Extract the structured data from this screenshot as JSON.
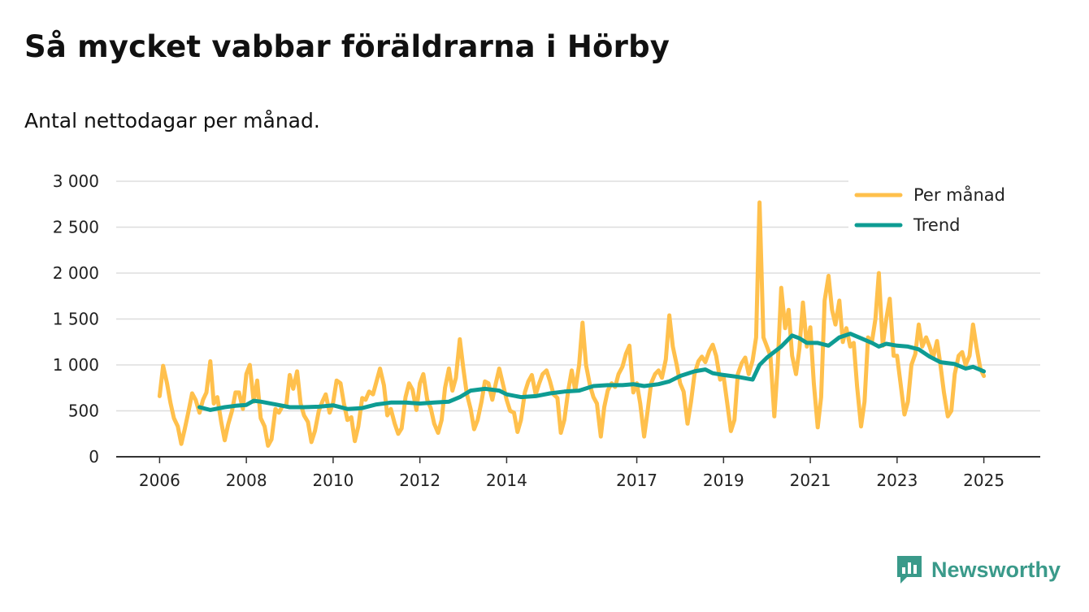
{
  "title": "Så mycket vabbar föräldrarna i Hörby",
  "subtitle": "Antal nettodagar per månad.",
  "brand": {
    "name": "Newsworthy",
    "icon": "newsworthy-logo-icon",
    "color": "#3a9a8a"
  },
  "colors": {
    "monthly": "#ffc04c",
    "trend": "#0e9c93",
    "grid": "#dddddd",
    "axis": "#333333"
  },
  "chart_data": {
    "type": "line",
    "title": "Så mycket vabbar föräldrarna i Hörby",
    "subtitle": "Antal nettodagar per månad.",
    "xlabel": "",
    "ylabel": "",
    "xlim": [
      2005.0,
      2026.3
    ],
    "ylim": [
      0,
      3000
    ],
    "yticks": [
      0,
      500,
      1000,
      1500,
      2000,
      2500,
      3000
    ],
    "ytick_labels": [
      "0",
      "500",
      "1 000",
      "1 500",
      "2 000",
      "2 500",
      "3 000"
    ],
    "xticks": [
      2006,
      2008,
      2010,
      2012,
      2014,
      2017,
      2019,
      2021,
      2023,
      2025
    ],
    "xtick_labels": [
      "2006",
      "2008",
      "2010",
      "2012",
      "2014",
      "2017",
      "2019",
      "2021",
      "2023",
      "2025"
    ],
    "grid": true,
    "legend": "top-right",
    "series": [
      {
        "name": "Per månad",
        "color": "#ffc04c",
        "points": [
          [
            2006.0,
            660
          ],
          [
            2006.08,
            990
          ],
          [
            2006.17,
            800
          ],
          [
            2006.25,
            590
          ],
          [
            2006.33,
            420
          ],
          [
            2006.42,
            330
          ],
          [
            2006.5,
            140
          ],
          [
            2006.58,
            300
          ],
          [
            2006.67,
            500
          ],
          [
            2006.75,
            690
          ],
          [
            2006.83,
            620
          ],
          [
            2006.92,
            480
          ],
          [
            2007.0,
            620
          ],
          [
            2007.08,
            700
          ],
          [
            2007.17,
            1040
          ],
          [
            2007.25,
            580
          ],
          [
            2007.33,
            650
          ],
          [
            2007.42,
            380
          ],
          [
            2007.5,
            180
          ],
          [
            2007.58,
            350
          ],
          [
            2007.67,
            500
          ],
          [
            2007.75,
            700
          ],
          [
            2007.83,
            700
          ],
          [
            2007.92,
            520
          ],
          [
            2008.0,
            900
          ],
          [
            2008.08,
            1000
          ],
          [
            2008.17,
            600
          ],
          [
            2008.25,
            830
          ],
          [
            2008.33,
            420
          ],
          [
            2008.42,
            330
          ],
          [
            2008.5,
            120
          ],
          [
            2008.58,
            190
          ],
          [
            2008.67,
            520
          ],
          [
            2008.75,
            480
          ],
          [
            2008.83,
            550
          ],
          [
            2008.92,
            560
          ],
          [
            2009.0,
            890
          ],
          [
            2009.08,
            740
          ],
          [
            2009.17,
            930
          ],
          [
            2009.25,
            580
          ],
          [
            2009.33,
            450
          ],
          [
            2009.42,
            380
          ],
          [
            2009.5,
            160
          ],
          [
            2009.58,
            280
          ],
          [
            2009.67,
            500
          ],
          [
            2009.75,
            600
          ],
          [
            2009.83,
            680
          ],
          [
            2009.92,
            480
          ],
          [
            2010.0,
            590
          ],
          [
            2010.08,
            830
          ],
          [
            2010.17,
            800
          ],
          [
            2010.25,
            580
          ],
          [
            2010.33,
            400
          ],
          [
            2010.42,
            430
          ],
          [
            2010.5,
            170
          ],
          [
            2010.58,
            330
          ],
          [
            2010.67,
            640
          ],
          [
            2010.75,
            620
          ],
          [
            2010.83,
            710
          ],
          [
            2010.92,
            680
          ],
          [
            2011.0,
            820
          ],
          [
            2011.08,
            960
          ],
          [
            2011.17,
            780
          ],
          [
            2011.25,
            450
          ],
          [
            2011.33,
            520
          ],
          [
            2011.42,
            360
          ],
          [
            2011.5,
            250
          ],
          [
            2011.58,
            310
          ],
          [
            2011.67,
            650
          ],
          [
            2011.75,
            800
          ],
          [
            2011.83,
            730
          ],
          [
            2011.92,
            510
          ],
          [
            2012.0,
            800
          ],
          [
            2012.08,
            900
          ],
          [
            2012.17,
            620
          ],
          [
            2012.25,
            530
          ],
          [
            2012.33,
            360
          ],
          [
            2012.42,
            260
          ],
          [
            2012.5,
            400
          ],
          [
            2012.58,
            750
          ],
          [
            2012.67,
            960
          ],
          [
            2012.75,
            720
          ],
          [
            2012.83,
            860
          ],
          [
            2012.92,
            1280
          ],
          [
            2013.0,
            970
          ],
          [
            2013.08,
            690
          ],
          [
            2013.17,
            520
          ],
          [
            2013.25,
            300
          ],
          [
            2013.33,
            400
          ],
          [
            2013.42,
            600
          ],
          [
            2013.5,
            820
          ],
          [
            2013.58,
            800
          ],
          [
            2013.67,
            620
          ],
          [
            2013.75,
            800
          ],
          [
            2013.83,
            960
          ],
          [
            2013.92,
            780
          ],
          [
            2014.0,
            620
          ],
          [
            2014.08,
            500
          ],
          [
            2014.17,
            480
          ],
          [
            2014.25,
            270
          ],
          [
            2014.33,
            400
          ],
          [
            2014.42,
            700
          ],
          [
            2014.5,
            820
          ],
          [
            2014.58,
            890
          ],
          [
            2014.67,
            680
          ],
          [
            2014.75,
            800
          ],
          [
            2014.83,
            900
          ],
          [
            2014.92,
            940
          ],
          [
            2015.0,
            820
          ],
          [
            2015.08,
            680
          ],
          [
            2015.17,
            640
          ],
          [
            2015.25,
            260
          ],
          [
            2015.33,
            400
          ],
          [
            2015.42,
            720
          ],
          [
            2015.5,
            940
          ],
          [
            2015.58,
            720
          ],
          [
            2015.67,
            1000
          ],
          [
            2015.75,
            1460
          ],
          [
            2015.83,
            1000
          ],
          [
            2015.92,
            780
          ],
          [
            2016.0,
            650
          ],
          [
            2016.08,
            580
          ],
          [
            2016.17,
            220
          ],
          [
            2016.25,
            540
          ],
          [
            2016.33,
            720
          ],
          [
            2016.42,
            800
          ],
          [
            2016.5,
            760
          ],
          [
            2016.58,
            900
          ],
          [
            2016.67,
            980
          ],
          [
            2016.75,
            1120
          ],
          [
            2016.83,
            1210
          ],
          [
            2016.92,
            700
          ],
          [
            2017.0,
            800
          ],
          [
            2017.08,
            580
          ],
          [
            2017.17,
            220
          ],
          [
            2017.25,
            500
          ],
          [
            2017.33,
            800
          ],
          [
            2017.42,
            900
          ],
          [
            2017.5,
            940
          ],
          [
            2017.58,
            860
          ],
          [
            2017.67,
            1060
          ],
          [
            2017.75,
            1540
          ],
          [
            2017.83,
            1200
          ],
          [
            2017.92,
            1000
          ],
          [
            2018.0,
            800
          ],
          [
            2018.08,
            710
          ],
          [
            2018.17,
            360
          ],
          [
            2018.25,
            600
          ],
          [
            2018.33,
            900
          ],
          [
            2018.42,
            1040
          ],
          [
            2018.5,
            1090
          ],
          [
            2018.58,
            1030
          ],
          [
            2018.67,
            1150
          ],
          [
            2018.75,
            1220
          ],
          [
            2018.83,
            1100
          ],
          [
            2018.92,
            840
          ],
          [
            2019.0,
            880
          ],
          [
            2019.08,
            600
          ],
          [
            2019.17,
            280
          ],
          [
            2019.25,
            400
          ],
          [
            2019.33,
            900
          ],
          [
            2019.42,
            1020
          ],
          [
            2019.5,
            1080
          ],
          [
            2019.58,
            900
          ],
          [
            2019.67,
            1050
          ],
          [
            2019.75,
            1300
          ],
          [
            2019.83,
            2770
          ],
          [
            2019.92,
            1300
          ],
          [
            2020.0,
            1200
          ],
          [
            2020.08,
            1100
          ],
          [
            2020.17,
            440
          ],
          [
            2020.25,
            1000
          ],
          [
            2020.33,
            1840
          ],
          [
            2020.42,
            1400
          ],
          [
            2020.5,
            1600
          ],
          [
            2020.58,
            1100
          ],
          [
            2020.67,
            900
          ],
          [
            2020.75,
            1180
          ],
          [
            2020.83,
            1680
          ],
          [
            2020.92,
            1200
          ],
          [
            2021.0,
            1410
          ],
          [
            2021.08,
            800
          ],
          [
            2021.17,
            320
          ],
          [
            2021.25,
            650
          ],
          [
            2021.33,
            1700
          ],
          [
            2021.42,
            1970
          ],
          [
            2021.5,
            1600
          ],
          [
            2021.58,
            1440
          ],
          [
            2021.67,
            1700
          ],
          [
            2021.75,
            1250
          ],
          [
            2021.83,
            1400
          ],
          [
            2021.92,
            1200
          ],
          [
            2022.0,
            1240
          ],
          [
            2022.08,
            760
          ],
          [
            2022.17,
            330
          ],
          [
            2022.25,
            600
          ],
          [
            2022.33,
            1300
          ],
          [
            2022.42,
            1250
          ],
          [
            2022.5,
            1500
          ],
          [
            2022.58,
            2000
          ],
          [
            2022.67,
            1210
          ],
          [
            2022.75,
            1500
          ],
          [
            2022.83,
            1720
          ],
          [
            2022.92,
            1100
          ],
          [
            2023.0,
            1100
          ],
          [
            2023.08,
            800
          ],
          [
            2023.17,
            460
          ],
          [
            2023.25,
            600
          ],
          [
            2023.33,
            1000
          ],
          [
            2023.42,
            1120
          ],
          [
            2023.5,
            1440
          ],
          [
            2023.58,
            1200
          ],
          [
            2023.67,
            1300
          ],
          [
            2023.75,
            1200
          ],
          [
            2023.83,
            1080
          ],
          [
            2023.92,
            1260
          ],
          [
            2024.0,
            1000
          ],
          [
            2024.08,
            700
          ],
          [
            2024.17,
            440
          ],
          [
            2024.25,
            500
          ],
          [
            2024.33,
            900
          ],
          [
            2024.42,
            1100
          ],
          [
            2024.5,
            1140
          ],
          [
            2024.58,
            1000
          ],
          [
            2024.67,
            1100
          ],
          [
            2024.75,
            1440
          ],
          [
            2024.83,
            1200
          ],
          [
            2024.92,
            960
          ],
          [
            2025.0,
            880
          ]
        ]
      },
      {
        "name": "Trend",
        "color": "#0e9c93",
        "points": [
          [
            2006.92,
            540
          ],
          [
            2007.17,
            510
          ],
          [
            2007.5,
            540
          ],
          [
            2007.75,
            555
          ],
          [
            2008.0,
            565
          ],
          [
            2008.17,
            610
          ],
          [
            2008.33,
            600
          ],
          [
            2008.67,
            570
          ],
          [
            2009.0,
            540
          ],
          [
            2009.33,
            540
          ],
          [
            2009.67,
            545
          ],
          [
            2010.0,
            560
          ],
          [
            2010.33,
            520
          ],
          [
            2010.67,
            530
          ],
          [
            2011.0,
            570
          ],
          [
            2011.33,
            590
          ],
          [
            2011.67,
            590
          ],
          [
            2012.0,
            580
          ],
          [
            2012.33,
            590
          ],
          [
            2012.67,
            600
          ],
          [
            2012.92,
            650
          ],
          [
            2013.17,
            720
          ],
          [
            2013.5,
            740
          ],
          [
            2013.83,
            720
          ],
          [
            2014.0,
            680
          ],
          [
            2014.33,
            650
          ],
          [
            2014.67,
            660
          ],
          [
            2015.0,
            690
          ],
          [
            2015.33,
            710
          ],
          [
            2015.67,
            720
          ],
          [
            2016.0,
            770
          ],
          [
            2016.33,
            780
          ],
          [
            2016.67,
            780
          ],
          [
            2016.92,
            790
          ],
          [
            2017.17,
            770
          ],
          [
            2017.5,
            790
          ],
          [
            2017.75,
            820
          ],
          [
            2018.0,
            880
          ],
          [
            2018.33,
            930
          ],
          [
            2018.58,
            950
          ],
          [
            2018.75,
            910
          ],
          [
            2019.0,
            890
          ],
          [
            2019.33,
            870
          ],
          [
            2019.67,
            840
          ],
          [
            2019.83,
            1000
          ],
          [
            2020.0,
            1080
          ],
          [
            2020.33,
            1200
          ],
          [
            2020.58,
            1320
          ],
          [
            2020.75,
            1290
          ],
          [
            2020.92,
            1240
          ],
          [
            2021.17,
            1240
          ],
          [
            2021.42,
            1210
          ],
          [
            2021.67,
            1300
          ],
          [
            2021.92,
            1340
          ],
          [
            2022.17,
            1290
          ],
          [
            2022.42,
            1240
          ],
          [
            2022.58,
            1200
          ],
          [
            2022.75,
            1230
          ],
          [
            2023.0,
            1210
          ],
          [
            2023.25,
            1200
          ],
          [
            2023.5,
            1170
          ],
          [
            2023.75,
            1090
          ],
          [
            2024.0,
            1030
          ],
          [
            2024.33,
            1010
          ],
          [
            2024.58,
            960
          ],
          [
            2024.75,
            980
          ],
          [
            2025.0,
            930
          ]
        ]
      }
    ]
  }
}
